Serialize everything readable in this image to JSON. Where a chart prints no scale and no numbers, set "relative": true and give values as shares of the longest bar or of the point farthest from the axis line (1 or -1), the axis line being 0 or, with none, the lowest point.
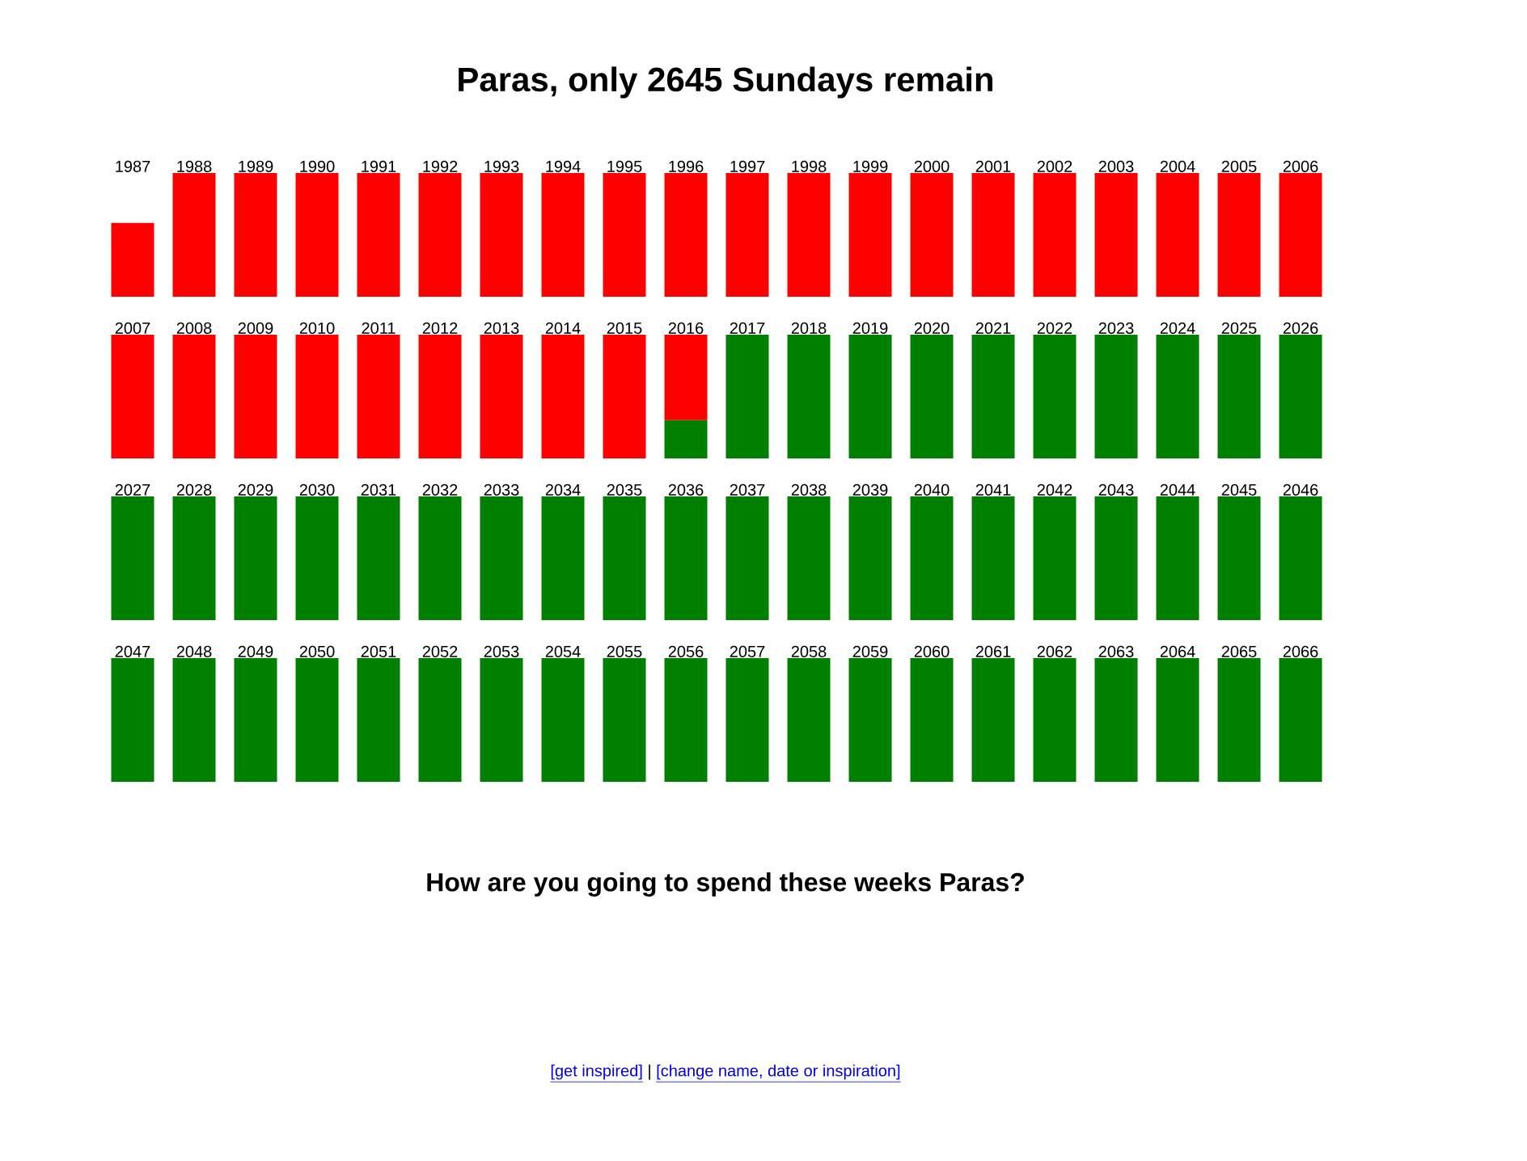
{
  "chart_data": [
    {
      "type": "bar",
      "stacked": true,
      "relative": true,
      "title": "Paras, only 2645 Sundays remain",
      "categories": [
        "1987",
        "1988",
        "1989",
        "1990",
        "1991",
        "1992",
        "1993",
        "1994",
        "1995",
        "1996",
        "1997",
        "1998",
        "1999",
        "2000",
        "2001",
        "2002",
        "2003",
        "2004",
        "2005",
        "2006"
      ],
      "series": [
        {
          "color": "#ff0000",
          "values": [
            0.596,
            1,
            1,
            1,
            1,
            1,
            1,
            1,
            1,
            1,
            1,
            1,
            1,
            1,
            1,
            1,
            1,
            1,
            1,
            1
          ]
        }
      ]
    },
    {
      "type": "bar",
      "stacked": true,
      "relative": true,
      "categories": [
        "2007",
        "2008",
        "2009",
        "2010",
        "2011",
        "2012",
        "2013",
        "2014",
        "2015",
        "2016",
        "2017",
        "2018",
        "2019",
        "2020",
        "2021",
        "2022",
        "2023",
        "2024",
        "2025",
        "2026"
      ],
      "series": [
        {
          "color": "#008000",
          "values": [
            null,
            null,
            null,
            null,
            null,
            null,
            null,
            null,
            null,
            0.308,
            1,
            1,
            1,
            1,
            1,
            1,
            1,
            1,
            1,
            1
          ]
        },
        {
          "color": "#ff0000",
          "values": [
            1,
            1,
            1,
            1,
            1,
            1,
            1,
            1,
            1,
            0.692,
            null,
            null,
            null,
            null,
            null,
            null,
            null,
            null,
            null,
            null
          ]
        }
      ]
    },
    {
      "type": "bar",
      "stacked": true,
      "relative": true,
      "categories": [
        "2027",
        "2028",
        "2029",
        "2030",
        "2031",
        "2032",
        "2033",
        "2034",
        "2035",
        "2036",
        "2037",
        "2038",
        "2039",
        "2040",
        "2041",
        "2042",
        "2043",
        "2044",
        "2045",
        "2046"
      ],
      "series": [
        {
          "color": "#008000",
          "values": [
            1,
            1,
            1,
            1,
            1,
            1,
            1,
            1,
            1,
            1,
            1,
            1,
            1,
            1,
            1,
            1,
            1,
            1,
            1,
            1
          ]
        }
      ]
    },
    {
      "type": "bar",
      "stacked": true,
      "relative": true,
      "categories": [
        "2047",
        "2048",
        "2049",
        "2050",
        "2051",
        "2052",
        "2053",
        "2054",
        "2055",
        "2056",
        "2057",
        "2058",
        "2059",
        "2060",
        "2061",
        "2062",
        "2063",
        "2064",
        "2065",
        "2066"
      ],
      "series": [
        {
          "color": "#008000",
          "values": [
            1,
            1,
            1,
            1,
            1,
            1,
            1,
            1,
            1,
            1,
            1,
            1,
            1,
            1,
            1,
            1,
            1,
            1,
            1,
            1
          ]
        }
      ],
      "annotations": [
        "How are you going to spend these weeks Paras?",
        "[get inspired]",
        "|",
        "[change name, date or inspiration]"
      ]
    }
  ]
}
